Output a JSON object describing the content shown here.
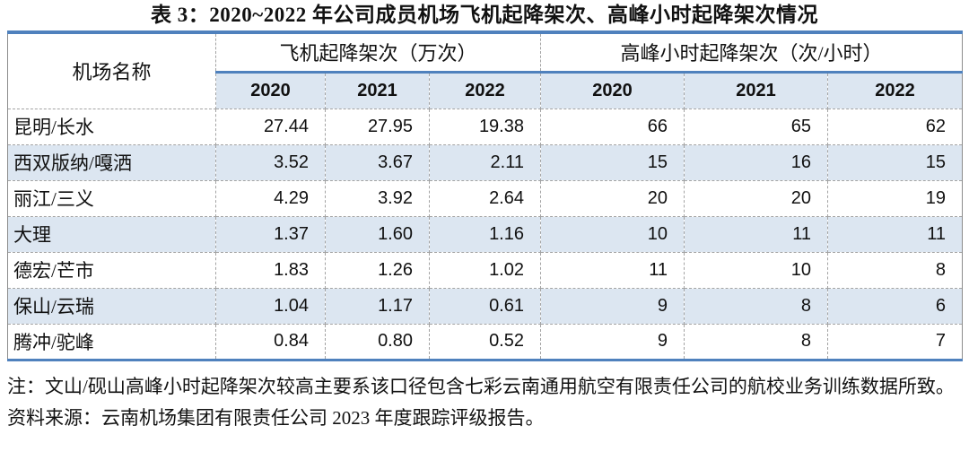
{
  "title": "表 3：2020~2022 年公司成员机场飞机起降架次、高峰小时起降架次情况",
  "table": {
    "corner_header": "机场名称",
    "groups": [
      {
        "label": "飞机起降架次（万次）",
        "years": [
          "2020",
          "2021",
          "2022"
        ]
      },
      {
        "label": "高峰小时起降架次（次/小时）",
        "years": [
          "2020",
          "2021",
          "2022"
        ]
      }
    ],
    "rows": [
      {
        "name": "昆明/长水",
        "values": [
          "27.44",
          "27.95",
          "19.38",
          "66",
          "65",
          "62"
        ]
      },
      {
        "name": "西双版纳/嘎洒",
        "values": [
          "3.52",
          "3.67",
          "2.11",
          "15",
          "16",
          "15"
        ]
      },
      {
        "name": "丽江/三义",
        "values": [
          "4.29",
          "3.92",
          "2.64",
          "20",
          "20",
          "19"
        ]
      },
      {
        "name": "大理",
        "values": [
          "1.37",
          "1.60",
          "1.16",
          "10",
          "11",
          "11"
        ]
      },
      {
        "name": "德宏/芒市",
        "values": [
          "1.83",
          "1.26",
          "1.02",
          "11",
          "10",
          "8"
        ]
      },
      {
        "name": "保山/云瑞",
        "values": [
          "1.04",
          "1.17",
          "0.61",
          "9",
          "8",
          "6"
        ]
      },
      {
        "name": "腾冲/驼峰",
        "values": [
          "0.84",
          "0.80",
          "0.52",
          "9",
          "8",
          "7"
        ]
      }
    ]
  },
  "notes": [
    "注：文山/砚山高峰小时起降架次较高主要系该口径包含七彩云南通用航空有限责任公司的航校业务训练数据所致。",
    "资料来源：云南机场集团有限责任公司 2023 年度跟踪评级报告。"
  ],
  "colors": {
    "accent": "#4f81bd",
    "stripe": "#dce6f1"
  }
}
